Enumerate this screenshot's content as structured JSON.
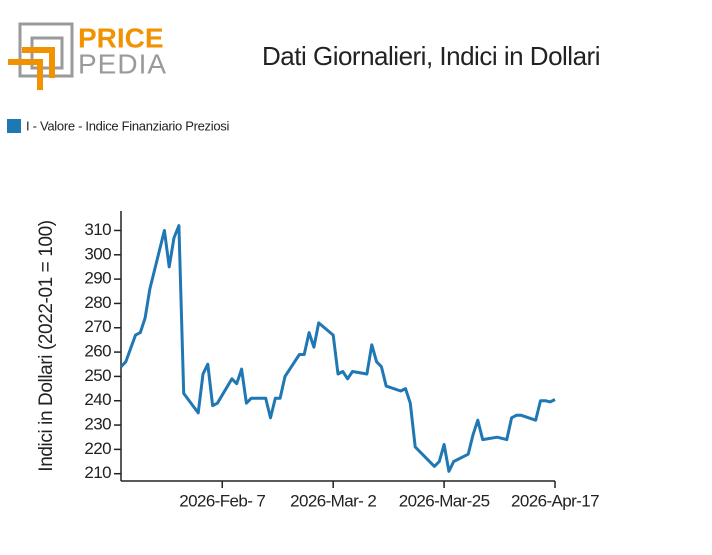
{
  "logo": {
    "top": "PRICE",
    "bottom": "PEDIA"
  },
  "chart_data": {
    "type": "line",
    "title": "Dati Giornalieri, Indici in Dollari",
    "y_label": "Indici in Dollari (2022-01 = 100)",
    "series": [
      {
        "name": "I - Valore - Indice Finanziario Preziosi",
        "color": "#1f77b4",
        "x": [
          "2026-01-17",
          "2026-01-18",
          "2026-01-20",
          "2026-01-21",
          "2026-01-22",
          "2026-01-23",
          "2026-01-26",
          "2026-01-27",
          "2026-01-28",
          "2026-01-29",
          "2026-01-30",
          "2026-02-02",
          "2026-02-03",
          "2026-02-04",
          "2026-02-05",
          "2026-02-06",
          "2026-02-09",
          "2026-02-10",
          "2026-02-11",
          "2026-02-12",
          "2026-02-13",
          "2026-02-16",
          "2026-02-17",
          "2026-02-18",
          "2026-02-19",
          "2026-02-20",
          "2026-02-23",
          "2026-02-24",
          "2026-02-25",
          "2026-02-26",
          "2026-02-27",
          "2026-03-02",
          "2026-03-03",
          "2026-03-04",
          "2026-03-05",
          "2026-03-06",
          "2026-03-09",
          "2026-03-10",
          "2026-03-11",
          "2026-03-12",
          "2026-03-13",
          "2026-03-16",
          "2026-03-17",
          "2026-03-18",
          "2026-03-19",
          "2026-03-23",
          "2026-03-24",
          "2026-03-25",
          "2026-03-26",
          "2026-03-27",
          "2026-03-30",
          "2026-03-31",
          "2026-04-01",
          "2026-04-02",
          "2026-04-05",
          "2026-04-07",
          "2026-04-08",
          "2026-04-09",
          "2026-04-10",
          "2026-04-13",
          "2026-04-14",
          "2026-04-15",
          "2026-04-16",
          "2026-04-17"
        ],
        "values": [
          254,
          256,
          267,
          268,
          274,
          286,
          310,
          295,
          307,
          312,
          243,
          235,
          251,
          255,
          238,
          239,
          249,
          247,
          253,
          239,
          241,
          241,
          233,
          241,
          241,
          250,
          259,
          259,
          268,
          262,
          272,
          267,
          251,
          252,
          249,
          252,
          251,
          263,
          256,
          254,
          246,
          244,
          245,
          239,
          221,
          213,
          215,
          222,
          211,
          215,
          218,
          226,
          232,
          224,
          225,
          224,
          233,
          234,
          234,
          232,
          240,
          240,
          239.5,
          240.5
        ]
      }
    ],
    "xlim": [
      "2026-01-17",
      "2026-04-17"
    ],
    "xticks": [
      {
        "value": "2026-02-07",
        "label": "2026-Feb- 7"
      },
      {
        "value": "2026-03-02",
        "label": "2026-Mar- 2"
      },
      {
        "value": "2026-03-25",
        "label": "2026-Mar-25"
      },
      {
        "value": "2026-04-17",
        "label": "2026-Apr-17"
      }
    ],
    "ylim": [
      207,
      318
    ],
    "yticks": [
      210,
      220,
      230,
      240,
      250,
      260,
      270,
      280,
      290,
      300,
      310
    ]
  }
}
